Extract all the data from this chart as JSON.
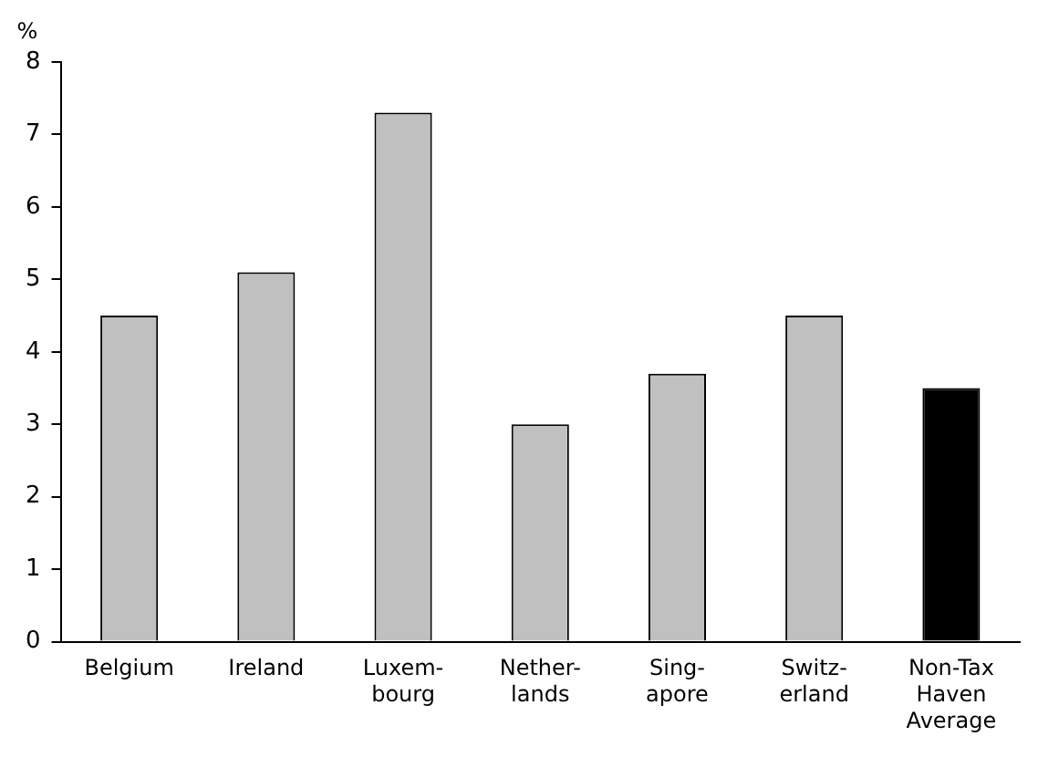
{
  "chart_data": {
    "type": "bar",
    "ylabel": "%",
    "categories": [
      "Belgium",
      "Ireland",
      "Luxem-\nbourg",
      "Nether-\nlands",
      "Sing-\napore",
      "Switz-\nerland",
      "Non-Tax\nHaven\nAverage"
    ],
    "values": [
      4.5,
      5.1,
      7.3,
      3.0,
      3.7,
      4.5,
      3.5
    ],
    "colors": [
      "#c0c0c0",
      "#c0c0c0",
      "#c0c0c0",
      "#c0c0c0",
      "#c0c0c0",
      "#c0c0c0",
      "#000000"
    ],
    "ylim": [
      0,
      8
    ],
    "yticks": [
      0,
      1,
      2,
      3,
      4,
      5,
      6,
      7,
      8
    ],
    "grid": false,
    "legend": false
  }
}
